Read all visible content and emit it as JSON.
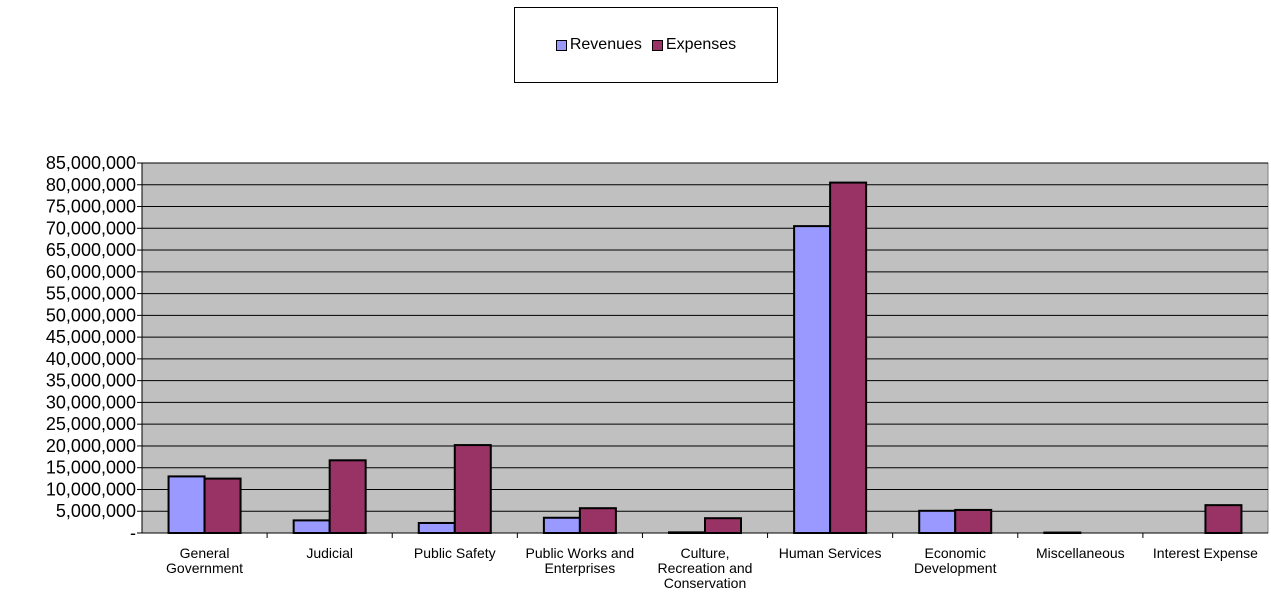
{
  "chart_data": {
    "type": "bar",
    "categories": [
      [
        "General",
        "Government"
      ],
      [
        "Judicial"
      ],
      [
        "Public Safety"
      ],
      [
        "Public Works and",
        "Enterprises"
      ],
      [
        "Culture,",
        "Recreation and",
        "Conservation"
      ],
      [
        "Human Services"
      ],
      [
        "Economic",
        "Development"
      ],
      [
        "Miscellaneous"
      ],
      [
        "Interest Expense"
      ]
    ],
    "series": [
      {
        "name": "Revenues",
        "color": "#9999ff",
        "values": [
          13000000,
          2900000,
          2300000,
          3500000,
          150000,
          70500000,
          5100000,
          100000,
          0
        ]
      },
      {
        "name": "Expenses",
        "color": "#993366",
        "values": [
          12500000,
          16700000,
          20200000,
          5700000,
          3400000,
          80500000,
          5300000,
          0,
          6400000
        ]
      }
    ],
    "ylim": [
      0,
      85000000
    ],
    "ytick_step": 5000000,
    "ytick_labels": [
      "-",
      "5,000,000",
      "10,000,000",
      "15,000,000",
      "20,000,000",
      "25,000,000",
      "30,000,000",
      "35,000,000",
      "40,000,000",
      "45,000,000",
      "50,000,000",
      "55,000,000",
      "60,000,000",
      "65,000,000",
      "70,000,000",
      "75,000,000",
      "80,000,000",
      "85,000,000"
    ],
    "grid": true,
    "plot_background": "#c0c0c0",
    "legend_position": "top-center",
    "title": "",
    "xlabel": "",
    "ylabel": ""
  }
}
